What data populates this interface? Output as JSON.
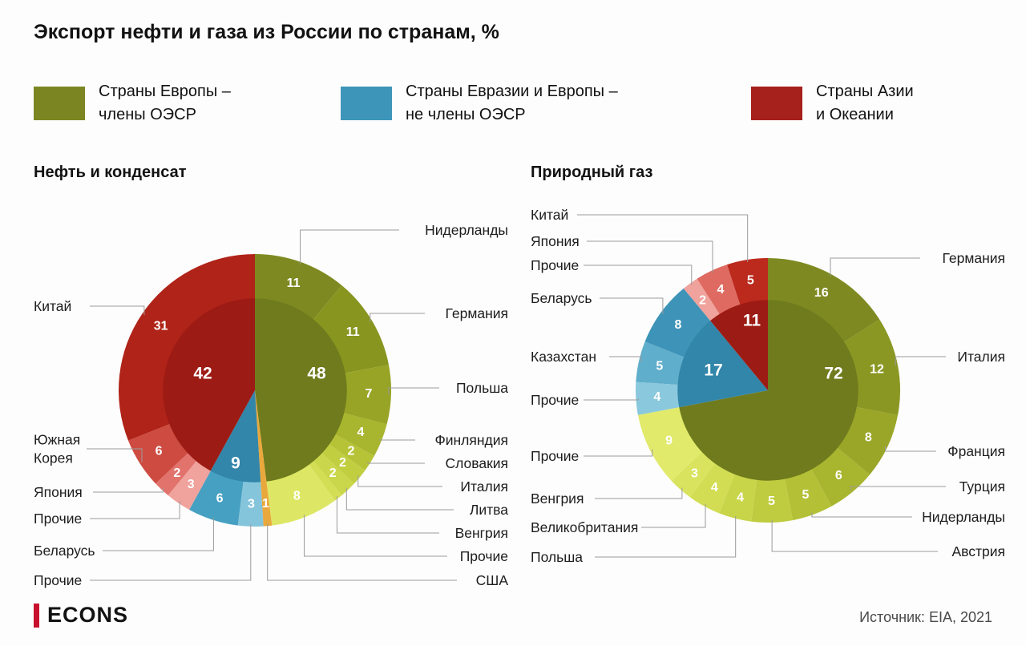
{
  "title": "Экспорт нефти и газа из России по странам, %",
  "legend": [
    {
      "label": "Страны Европы –\nчлены ОЭСР",
      "color": "#7B8622"
    },
    {
      "label": "Страны Евразии и Европы –\nне члены ОЭСР",
      "color": "#3D95B9"
    },
    {
      "label": "Страны Азии\nи Океании",
      "color": "#A6201C"
    }
  ],
  "chart_data": [
    {
      "type": "pie",
      "title": "Нефть и конденсат",
      "units": "%",
      "direction": "clockwise-from-top",
      "groups": [
        {
          "name": "Страны Европы – члены ОЭСР",
          "value": 48,
          "color": "#6F7B1D"
        },
        {
          "name": "США",
          "value": 1,
          "color": "#E9A83C"
        },
        {
          "name": "Страны Евразии и Европы – не члены ОЭСР",
          "value": 9,
          "color": "#3186A9"
        },
        {
          "name": "Страны Азии и Океании",
          "value": 42,
          "color": "#9C1B14"
        }
      ],
      "slices": [
        {
          "label": "Нидерланды",
          "value": 11,
          "color": "#7E8A21",
          "group": 0
        },
        {
          "label": "Германия",
          "value": 11,
          "color": "#88951F",
          "group": 0
        },
        {
          "label": "Польша",
          "value": 7,
          "color": "#97A426",
          "group": 0
        },
        {
          "label": "Финляндия",
          "value": 4,
          "color": "#A8B52E",
          "group": 0
        },
        {
          "label": "Словакия",
          "value": 2,
          "color": "#B6C337",
          "group": 0
        },
        {
          "label": "Италия",
          "value": 2,
          "color": "#C1CE40",
          "group": 0
        },
        {
          "label": "Литва",
          "value": 2,
          "color": "#CBD74A",
          "group": 0
        },
        {
          "label": "Венгрия",
          "value": 1,
          "color": "#D3DE54",
          "group": 0,
          "value_hidden": true
        },
        {
          "label": "Прочие",
          "value": 8,
          "color": "#DDE765",
          "group": 0
        },
        {
          "label": "США",
          "value": 1,
          "color": "#E9A83C",
          "group": 1
        },
        {
          "label": "Прочие",
          "value": 3,
          "color": "#85C5DB",
          "group": 2
        },
        {
          "label": "Беларусь",
          "value": 6,
          "color": "#46A0C2",
          "group": 2
        },
        {
          "label": "Прочие",
          "value": 3,
          "color": "#F0A29C",
          "group": 3
        },
        {
          "label": "Япония",
          "value": 2,
          "color": "#E2736C",
          "group": 3
        },
        {
          "label": "Южная Корея",
          "value": 6,
          "color": "#CE4B42",
          "group": 3
        },
        {
          "label": "Китай",
          "value": 31,
          "color": "#B02318",
          "group": 3
        }
      ]
    },
    {
      "type": "pie",
      "title": "Природный газ",
      "units": "%",
      "direction": "clockwise-from-top",
      "groups": [
        {
          "name": "Страны Европы – члены ОЭСР",
          "value": 72,
          "color": "#6F7B1D"
        },
        {
          "name": "Страны Евразии и Европы – не члены ОЭСР",
          "value": 17,
          "color": "#3186A9"
        },
        {
          "name": "Страны Азии и Океании",
          "value": 11,
          "color": "#9C1B14"
        }
      ],
      "slices": [
        {
          "label": "Германия",
          "value": 16,
          "color": "#7E8A21",
          "group": 0
        },
        {
          "label": "Италия",
          "value": 12,
          "color": "#8A9722",
          "group": 0
        },
        {
          "label": "Франция",
          "value": 8,
          "color": "#99A628",
          "group": 0
        },
        {
          "label": "Турция",
          "value": 6,
          "color": "#A8B52E",
          "group": 0
        },
        {
          "label": "Нидерланды",
          "value": 5,
          "color": "#B4C136",
          "group": 0
        },
        {
          "label": "Австрия",
          "value": 5,
          "color": "#BFCC3F",
          "group": 0
        },
        {
          "label": "Польша",
          "value": 4,
          "color": "#C9D549",
          "group": 0
        },
        {
          "label": "Великобритания",
          "value": 4,
          "color": "#D2DD53",
          "group": 0
        },
        {
          "label": "Венгрия",
          "value": 3,
          "color": "#D9E35D",
          "group": 0
        },
        {
          "label": "Прочие",
          "value": 9,
          "color": "#E1EA6B",
          "group": 0
        },
        {
          "label": "Прочие",
          "value": 4,
          "color": "#8AC8DD",
          "group": 1
        },
        {
          "label": "Казахстан",
          "value": 5,
          "color": "#5FAECB",
          "group": 1
        },
        {
          "label": "Беларусь",
          "value": 8,
          "color": "#3E94B8",
          "group": 1
        },
        {
          "label": "Прочие",
          "value": 2,
          "color": "#F0A29C",
          "group": 2
        },
        {
          "label": "Япония",
          "value": 4,
          "color": "#DE6A62",
          "group": 2
        },
        {
          "label": "Китай",
          "value": 5,
          "color": "#BB2A1D",
          "group": 2
        }
      ]
    }
  ],
  "footer": {
    "logo_text": "ECONS",
    "source": "Источник: EIA, 2021"
  }
}
